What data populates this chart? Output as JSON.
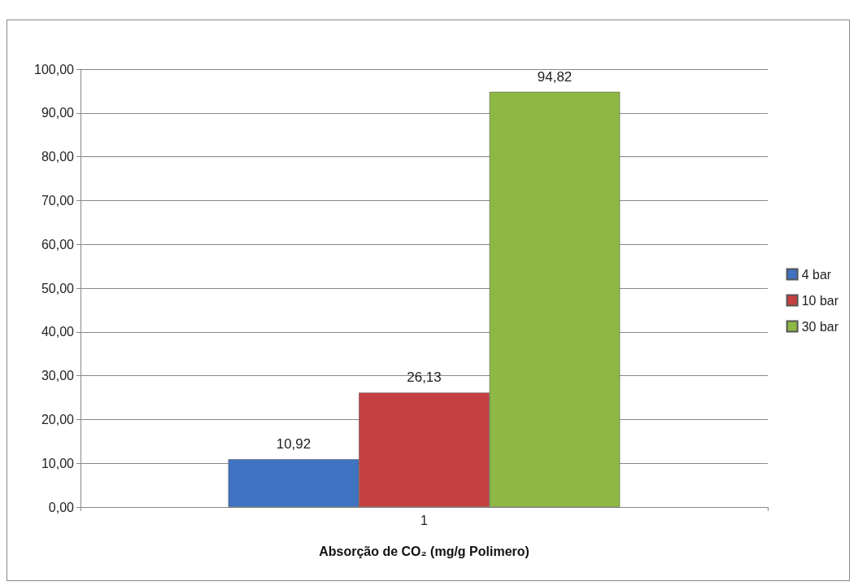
{
  "chart_data": {
    "type": "bar",
    "xlabel": "Absorção de CO₂ (mg/g Polimero)",
    "categories": [
      "1"
    ],
    "series": [
      {
        "name": "4 bar",
        "color": "#3f72c0",
        "values": [
          10.92
        ],
        "value_labels": [
          "10,92"
        ]
      },
      {
        "name": "10 bar",
        "color": "#c44040",
        "values": [
          26.13
        ],
        "value_labels": [
          "26,13"
        ]
      },
      {
        "name": "30 bar",
        "color": "#8db843",
        "values": [
          94.82
        ],
        "value_labels": [
          "94,82"
        ]
      }
    ],
    "ylim": [
      0,
      100
    ],
    "yticks": [
      {
        "value": 0,
        "label": "0,00"
      },
      {
        "value": 10,
        "label": "10,00"
      },
      {
        "value": 20,
        "label": "20,00"
      },
      {
        "value": 30,
        "label": "30,00"
      },
      {
        "value": 40,
        "label": "40,00"
      },
      {
        "value": 50,
        "label": "50,00"
      },
      {
        "value": 60,
        "label": "60,00"
      },
      {
        "value": 70,
        "label": "70,00"
      },
      {
        "value": 80,
        "label": "80,00"
      },
      {
        "value": 90,
        "label": "90,00"
      },
      {
        "value": 100,
        "label": "100,00"
      }
    ],
    "grid": "y",
    "legend": "right"
  }
}
